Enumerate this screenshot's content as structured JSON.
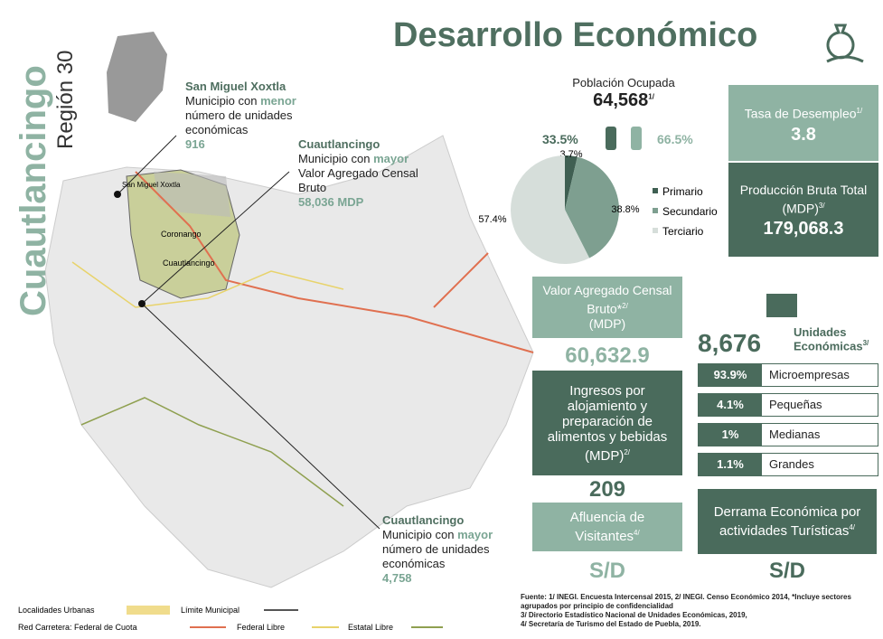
{
  "header": {
    "title": "Desarrollo Económico",
    "side_title": "Cuautlancingo",
    "region": "Región 30"
  },
  "map_labels": [
    "San Miguel Xoxtla",
    "Coronango",
    "Cuautlancingo"
  ],
  "callouts": [
    {
      "name": "San Miguel Xoxtla",
      "pre": "Municipio con",
      "highlight": "menor",
      "post": "número de unidades económicas",
      "value": "916"
    },
    {
      "name": "Cuautlancingo",
      "pre": "Municipio con",
      "highlight": "mayor",
      "post": "Valor Agregado Censal Bruto",
      "value": "58,036 MDP"
    },
    {
      "name": "Cuautlancingo",
      "pre": "Municipio con",
      "highlight": "mayor",
      "post": "número de unidades económicas",
      "value": "4,758"
    }
  ],
  "population": {
    "label": "Población Ocupada",
    "value": "64,568",
    "note": "1/",
    "female": "33.5%",
    "male": "66.5%"
  },
  "chart_data": {
    "type": "pie",
    "categories": [
      "Primario",
      "Secundario",
      "Terciario"
    ],
    "values": [
      3.7,
      38.8,
      57.4
    ],
    "value_labels": [
      "3.7%",
      "38.8%",
      "57.4%"
    ],
    "colors": [
      "#3f5f52",
      "#7e9f90",
      "#d6dedA"
    ]
  },
  "stats": {
    "tasa": {
      "label": "Tasa de Desempleo",
      "note": "1/",
      "value": "3.8"
    },
    "produccion": {
      "label": "Producción Bruta Total (MDP)",
      "note": "3/",
      "value": "179,068.3"
    },
    "valor": {
      "label": "Valor Agregado Censal Bruto*",
      "note": "2/",
      "unit": "(MDP)",
      "value": "60,632.9"
    },
    "ingresos": {
      "label": "Ingresos por alojamiento y preparación de alimentos y bebidas (MDP)",
      "note": "2/",
      "value": "209"
    },
    "afluencia": {
      "label": "Afluencia de Visitantes",
      "note": "4/",
      "value": "S/D"
    },
    "derrama": {
      "label": "Derrama Económica por actividades Turísticas",
      "note": "4/",
      "value": "S/D"
    }
  },
  "unidades": {
    "value": "8,676",
    "label": "Unidades Económicas",
    "note": "3/",
    "sizes": [
      {
        "pct": "93.9%",
        "name": "Microempresas"
      },
      {
        "pct": "4.1%",
        "name": "Pequeñas"
      },
      {
        "pct": "1%",
        "name": "Medianas"
      },
      {
        "pct": "1.1%",
        "name": "Grandes"
      }
    ]
  },
  "legend": [
    "Localidades Urbanas",
    "Límite Municipal",
    "Red Carretera: Federal de Cuota",
    "Federal Libre",
    "Estatal Libre"
  ],
  "sources": [
    "Fuente: 1/ INEGI. Encuesta Intercensal 2015, 2/ INEGI. Censo Económico 2014, *Incluye sectores agrupados por principio de confidencialidad",
    "3/ Directorio Estadístico Nacional de Unidades Económicas, 2019,",
    "4/ Secretaría de Turismo del Estado de Puebla, 2019."
  ]
}
